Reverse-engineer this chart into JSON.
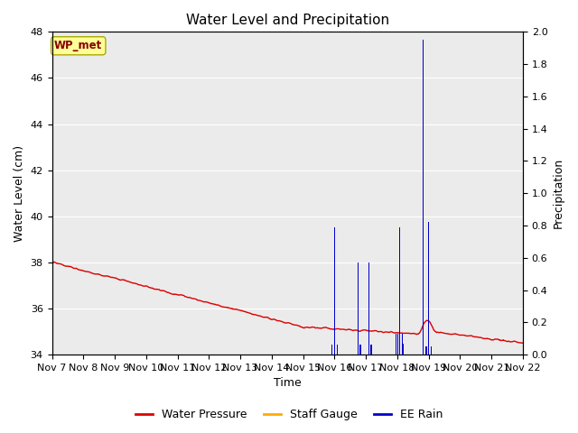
{
  "title": "Water Level and Precipitation",
  "xlabel": "Time",
  "ylabel_left": "Water Level (cm)",
  "ylabel_right": "Precipitation",
  "ylim_left": [
    34,
    48
  ],
  "ylim_right": [
    0.0,
    2.0
  ],
  "yticks_left": [
    34,
    36,
    38,
    40,
    42,
    44,
    46,
    48
  ],
  "yticks_right": [
    0.0,
    0.2,
    0.4,
    0.6,
    0.8,
    1.0,
    1.2,
    1.4,
    1.6,
    1.8,
    2.0
  ],
  "xlim": [
    7,
    22
  ],
  "xtick_positions": [
    7,
    8,
    9,
    10,
    11,
    12,
    13,
    14,
    15,
    16,
    17,
    18,
    19,
    20,
    21,
    22
  ],
  "xtick_labels": [
    "Nov 7",
    "Nov 8",
    "Nov 9",
    "Nov 10",
    "Nov 11",
    "Nov 12",
    "Nov 13",
    "Nov 14",
    "Nov 15",
    "Nov 16",
    "Nov 17",
    "Nov 18",
    "Nov 19",
    "Nov 20",
    "Nov 21",
    "Nov 22"
  ],
  "fig_bg_color": "#ffffff",
  "plot_bg_color": "#ebebeb",
  "grid_color": "#ffffff",
  "water_pressure_color": "#dd0000",
  "staff_gauge_color": "#ffaa00",
  "ee_rain_color": "#0000cc",
  "annotation_box_facecolor": "#ffff99",
  "annotation_box_edgecolor": "#aaaa00",
  "annotation_text_color": "#880000",
  "annotation_text": "WP_met",
  "legend_labels": [
    "Water Pressure",
    "Staff Gauge",
    "EE Rain"
  ],
  "title_fontsize": 11,
  "axis_label_fontsize": 9,
  "tick_fontsize": 8,
  "legend_fontsize": 9,
  "rain_events": [
    {
      "day": 15.92,
      "height": 0.06
    },
    {
      "day": 16.0,
      "height": 0.79
    },
    {
      "day": 16.08,
      "height": 0.06
    },
    {
      "day": 16.75,
      "height": 0.57
    },
    {
      "day": 16.82,
      "height": 0.06
    },
    {
      "day": 17.1,
      "height": 0.57
    },
    {
      "day": 17.17,
      "height": 0.06
    },
    {
      "day": 17.95,
      "height": 0.13
    },
    {
      "day": 18.02,
      "height": 0.13
    },
    {
      "day": 18.08,
      "height": 0.79
    },
    {
      "day": 18.15,
      "height": 0.13
    },
    {
      "day": 18.2,
      "height": 0.07
    },
    {
      "day": 18.82,
      "height": 1.95
    },
    {
      "day": 18.92,
      "height": 0.05
    },
    {
      "day": 19.0,
      "height": 0.82
    },
    {
      "day": 19.08,
      "height": 0.05
    }
  ]
}
